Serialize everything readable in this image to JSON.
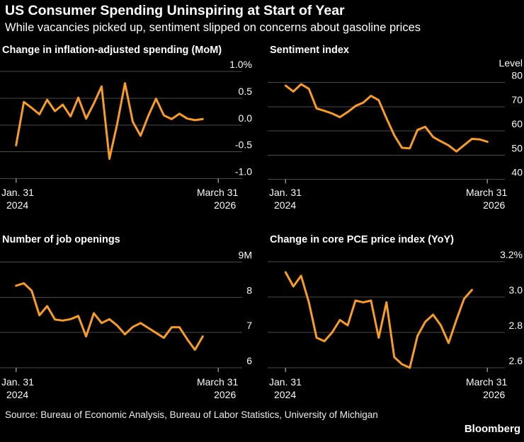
{
  "header": {
    "title": "US Consumer Spending Uninspiring at Start of Year",
    "subtitle": "While vacancies picked up, sentiment slipped on concerns about gasoline prices"
  },
  "footer": {
    "source": "Source: Bureau of Economic Analysis, Bureau of Labor Statistics, University of Michigan",
    "brand": "Bloomberg"
  },
  "colors": {
    "background": "#000000",
    "line": "#F79C27",
    "gridline": "#4A4A4A",
    "tick": "#8C8C8C",
    "text": "#FAFAFA"
  },
  "chart_data": [
    {
      "type": "line",
      "title": "Change in inflation-adjusted spending (MoM)",
      "unit_label": "",
      "legend": "none",
      "grid": "horizontal",
      "y_ticks": [
        "1.0%",
        "0.5",
        "0.0",
        "-0.5",
        "-1.0"
      ],
      "y_tick_values": [
        1.0,
        0.5,
        0.0,
        -0.5,
        -1.0
      ],
      "ylim": [
        -1.0,
        1.0
      ],
      "x_ticks": [
        {
          "line1": "Jan. 31",
          "line2": "2024"
        },
        {
          "line1": "March 31",
          "line2": "2026"
        }
      ],
      "x_months_span": 26,
      "frequency": "monthly",
      "values": [
        -0.38,
        0.43,
        0.32,
        0.2,
        0.47,
        0.26,
        0.38,
        0.16,
        0.51,
        0.12,
        0.4,
        0.72,
        -0.63,
        0.02,
        0.78,
        0.06,
        -0.2,
        0.17,
        0.49,
        0.18,
        0.11,
        0.21,
        0.12,
        0.09,
        0.11
      ]
    },
    {
      "type": "line",
      "title": "Sentiment index",
      "unit_label": "Level",
      "legend": "none",
      "grid": "horizontal",
      "y_ticks": [
        "80",
        "70",
        "60",
        "50",
        "40"
      ],
      "y_tick_values": [
        80,
        70,
        60,
        50,
        40
      ],
      "ylim": [
        40,
        80
      ],
      "x_ticks": [
        {
          "line1": "Jan. 31",
          "line2": "2024"
        },
        {
          "line1": "March 31",
          "line2": "2026"
        }
      ],
      "x_months_span": 26,
      "frequency": "monthly",
      "values": [
        78.7,
        76.3,
        79.3,
        77.4,
        69.3,
        68.3,
        67.2,
        65.7,
        67.8,
        70.3,
        71.7,
        74.5,
        72.7,
        65.2,
        58.2,
        53.0,
        52.8,
        60.4,
        61.7,
        57.5,
        55.7,
        54.0,
        51.5,
        54.1,
        56.7,
        56.5,
        55.5
      ]
    },
    {
      "type": "line",
      "title": "Number of job openings",
      "unit_label": "",
      "legend": "none",
      "grid": "horizontal",
      "y_ticks": [
        "9M",
        "8",
        "7",
        "6"
      ],
      "y_tick_values": [
        9,
        8,
        7,
        6
      ],
      "ylim": [
        6,
        9
      ],
      "x_ticks": [
        {
          "line1": "Jan. 31",
          "line2": "2024"
        },
        {
          "line1": "March 31",
          "line2": "2026"
        }
      ],
      "x_months_span": 26,
      "frequency": "monthly",
      "values": [
        8.33,
        8.4,
        8.19,
        7.49,
        7.75,
        7.37,
        7.34,
        7.38,
        7.47,
        6.89,
        7.55,
        7.27,
        7.38,
        7.2,
        6.95,
        7.16,
        7.27,
        7.13,
        6.99,
        6.85,
        7.15,
        7.15,
        6.81,
        6.51,
        6.89
      ]
    },
    {
      "type": "line",
      "title": "Change in core PCE price index (YoY)",
      "unit_label": "",
      "legend": "none",
      "grid": "horizontal",
      "y_ticks": [
        "3.2%",
        "3.0",
        "2.8",
        "2.6"
      ],
      "y_tick_values": [
        3.2,
        3.0,
        2.8,
        2.6
      ],
      "ylim": [
        2.6,
        3.2
      ],
      "x_ticks": [
        {
          "line1": "Jan. 31",
          "line2": "2024"
        },
        {
          "line1": "March 31",
          "line2": "2026"
        }
      ],
      "x_months_span": 26,
      "frequency": "monthly",
      "values": [
        3.14,
        3.06,
        3.12,
        2.97,
        2.77,
        2.75,
        2.8,
        2.87,
        2.84,
        2.98,
        2.97,
        2.98,
        2.77,
        2.97,
        2.66,
        2.62,
        2.6,
        2.78,
        2.86,
        2.9,
        2.84,
        2.74,
        2.87,
        2.99,
        3.04
      ]
    }
  ]
}
